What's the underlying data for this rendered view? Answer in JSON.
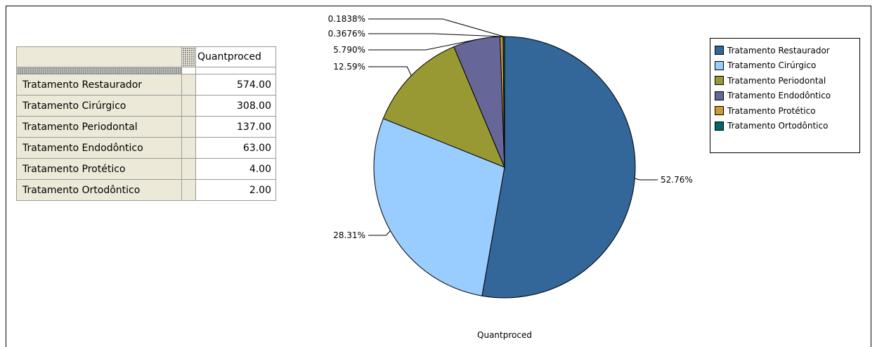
{
  "table": {
    "column_header": "Quantproced",
    "rows": [
      {
        "label": "Tratamento Restaurador",
        "value": "574.00"
      },
      {
        "label": "Tratamento Cirúrgico",
        "value": "308.00"
      },
      {
        "label": "Tratamento Periodontal",
        "value": "137.00"
      },
      {
        "label": "Tratamento Endodôntico",
        "value": "63.00"
      },
      {
        "label": "Tratamento Protético",
        "value": "4.00"
      },
      {
        "label": "Tratamento Ortodôntico",
        "value": "2.00"
      }
    ]
  },
  "chart_data": {
    "type": "pie",
    "title": "",
    "xlabel": "Quantproced",
    "categories": [
      "Tratamento Restaurador",
      "Tratamento Cirúrgico",
      "Tratamento Periodontal",
      "Tratamento Endodôntico",
      "Tratamento Protético",
      "Tratamento Ortodôntico"
    ],
    "values": [
      574,
      308,
      137,
      63,
      4,
      2
    ],
    "percent_labels": [
      "52.76%",
      "28.31%",
      "12.59%",
      "5.790%",
      "0.3676%",
      "0.1838%"
    ],
    "colors": [
      "#336699",
      "#99ccff",
      "#999933",
      "#666699",
      "#cc9933",
      "#006666"
    ],
    "legend_position": "right"
  }
}
